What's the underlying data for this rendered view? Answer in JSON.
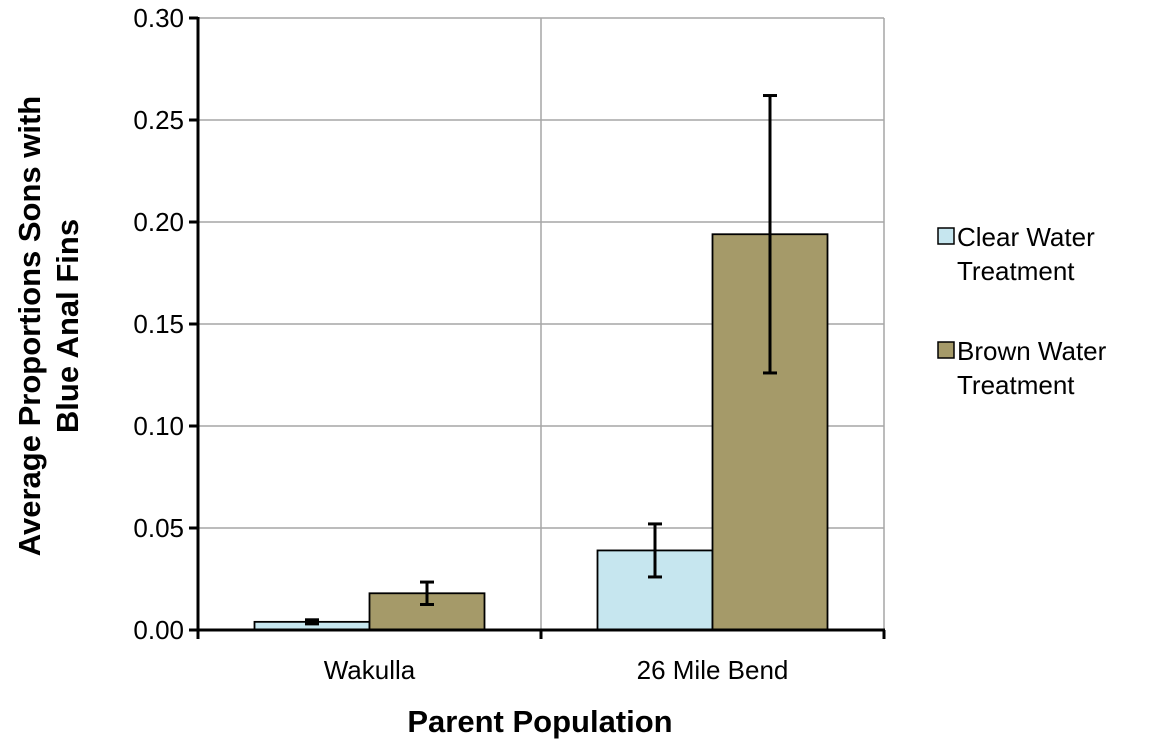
{
  "chart_data": {
    "type": "bar",
    "title": "",
    "xlabel": "Parent Population",
    "ylabel_lines": [
      "Average Proportions Sons with",
      "Blue Anal Fins"
    ],
    "categories": [
      "Wakulla",
      "26 Mile Bend"
    ],
    "ylim": [
      0,
      0.3
    ],
    "yticks": [
      "0.00",
      "0.05",
      "0.10",
      "0.15",
      "0.20",
      "0.25",
      "0.30"
    ],
    "grid": true,
    "legend_position": "right",
    "series": [
      {
        "name_lines": [
          "Clear Water",
          "Treatment"
        ],
        "color": "#c6e6ef",
        "values": [
          0.004,
          0.039
        ],
        "errors": [
          0.001,
          0.013
        ]
      },
      {
        "name_lines": [
          "Brown Water",
          "Treatment"
        ],
        "color": "#a59a69",
        "values": [
          0.018,
          0.194
        ],
        "errors": [
          0.0055,
          0.068
        ]
      }
    ]
  }
}
